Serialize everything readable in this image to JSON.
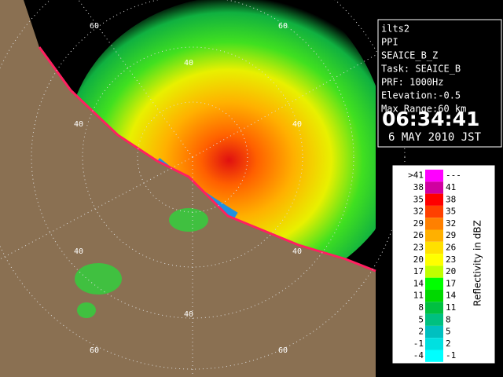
{
  "info_panel": {
    "lines": [
      "ilts2",
      "PPI",
      "SEAICE_B_Z",
      "Task: SEAICE_B",
      "PRF: 1000Hz",
      "Elevation:-0.5",
      "Max Range:60 km"
    ],
    "time": "06:34:41",
    "date": "6 MAY 2010 JST"
  },
  "legend": {
    "title": "Reflectivity in dBZ",
    "rows": [
      {
        "low": ">41",
        "high": "---",
        "color": "#ff00ff"
      },
      {
        "low": "38",
        "high": "41",
        "color": "#d000a0"
      },
      {
        "low": "35",
        "high": "38",
        "color": "#ff0000"
      },
      {
        "low": "32",
        "high": "35",
        "color": "#ff4000"
      },
      {
        "low": "29",
        "high": "32",
        "color": "#ff8000"
      },
      {
        "low": "26",
        "high": "29",
        "color": "#ffb000"
      },
      {
        "low": "23",
        "high": "26",
        "color": "#ffe000"
      },
      {
        "low": "20",
        "high": "23",
        "color": "#ffff00"
      },
      {
        "low": "17",
        "high": "20",
        "color": "#c0ff00"
      },
      {
        "low": "14",
        "high": "17",
        "color": "#00ff00"
      },
      {
        "low": "11",
        "high": "14",
        "color": "#00d800"
      },
      {
        "low": "8",
        "high": "11",
        "color": "#00c040"
      },
      {
        "low": "5",
        "high": "8",
        "color": "#00c080"
      },
      {
        "low": "2",
        "high": "5",
        "color": "#00c0c0"
      },
      {
        "low": "-1",
        "high": "2",
        "color": "#00e0e0"
      },
      {
        "low": "-4",
        "high": "-1",
        "color": "#00ffff"
      }
    ]
  },
  "map": {
    "range_labels": [
      "60",
      "60",
      "40",
      "40",
      "40",
      "40",
      "40",
      "40",
      "60",
      "60"
    ]
  }
}
